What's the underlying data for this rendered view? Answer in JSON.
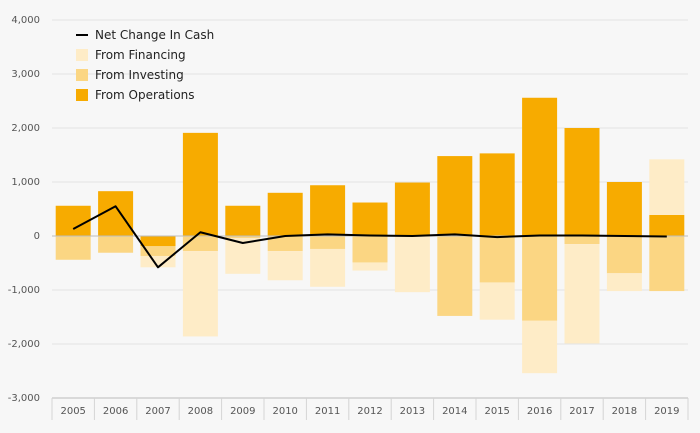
{
  "chart_data": {
    "type": "bar",
    "stacked": true,
    "categories": [
      "2005",
      "2006",
      "2007",
      "2008",
      "2009",
      "2010",
      "2011",
      "2012",
      "2013",
      "2014",
      "2015",
      "2016",
      "2017",
      "2018",
      "2019"
    ],
    "ylim": [
      -3000,
      4000
    ],
    "yticks": [
      -3000,
      -2000,
      -1000,
      0,
      1000,
      2000,
      3000,
      4000
    ],
    "ytick_labels": [
      "-3,000",
      "-2,000",
      "-1,000",
      "0",
      "1,000",
      "2,000",
      "3,000",
      "4,000"
    ],
    "grid": true,
    "legend_position": "top-left",
    "series": [
      {
        "name": "From Operations",
        "type": "bar",
        "color": "#f7ab00",
        "values": [
          560,
          830,
          -190,
          1910,
          560,
          800,
          940,
          620,
          990,
          1480,
          1530,
          2560,
          2000,
          1000,
          390
        ]
      },
      {
        "name": "From Investing",
        "type": "bar",
        "color": "#fbd683",
        "values": [
          -440,
          -310,
          -180,
          -280,
          -40,
          -280,
          -240,
          -490,
          0,
          -1480,
          -860,
          -1570,
          -150,
          -690,
          -1020
        ]
      },
      {
        "name": "From Financing",
        "type": "bar",
        "color": "#feecc7",
        "values": [
          0,
          0,
          -210,
          -1580,
          -660,
          -540,
          -700,
          -150,
          -1040,
          0,
          -690,
          -970,
          -1840,
          -330,
          1030
        ]
      },
      {
        "name": "Net Change In Cash",
        "type": "line",
        "color": "#000000",
        "values": [
          130,
          550,
          -580,
          70,
          -130,
          0,
          30,
          10,
          0,
          30,
          -20,
          10,
          10,
          0,
          -10
        ]
      }
    ]
  },
  "legend": [
    {
      "label": "Net Change In Cash",
      "kind": "line",
      "color": "#000000"
    },
    {
      "label": "From Financing",
      "kind": "box",
      "color": "#feecc7"
    },
    {
      "label": "From Investing",
      "kind": "box",
      "color": "#fbd683"
    },
    {
      "label": "From Operations",
      "kind": "box",
      "color": "#f7ab00"
    }
  ]
}
